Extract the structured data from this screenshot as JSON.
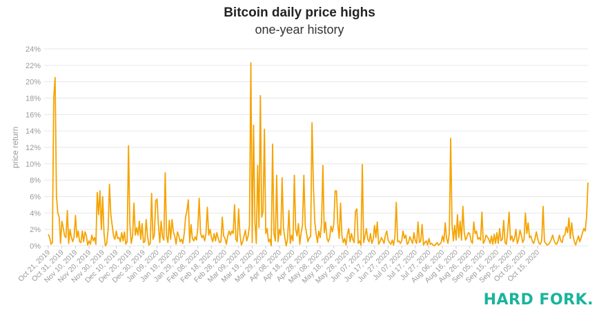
{
  "header": {
    "title": "Bitcoin daily price highs",
    "subtitle": "one-year history"
  },
  "brand": {
    "label": "HARD FORK.",
    "color": "#18b49c"
  },
  "colors": {
    "line": "#f5a300",
    "grid": "#e6e6e6",
    "axis_text": "#999999"
  },
  "chart_data": {
    "type": "line",
    "title": "Bitcoin daily price highs",
    "subtitle": "one-year history",
    "xlabel": "",
    "ylabel": "price return",
    "ylim": [
      0,
      24
    ],
    "yticks": [
      "0%",
      "2%",
      "4%",
      "6%",
      "8%",
      "10%",
      "12%",
      "14%",
      "16%",
      "18%",
      "20%",
      "22%",
      "24%"
    ],
    "grid": true,
    "x_tick_labels": [
      "Oct 21, 2019",
      "Oct 31, 2019",
      "Nov 10, 2019",
      "Nov 20, 2019",
      "Nov 30, 2019",
      "Dec 10, 2019",
      "Dec 20, 2019",
      "Dec 30, 2019",
      "Jan 09, 2020",
      "Jan 19, 2020",
      "Jan 29, 2020",
      "Feb 08, 2020",
      "Feb 18, 2020",
      "Feb 28, 2020",
      "Mar 09, 2020",
      "Mar 19, 2020",
      "Mar 29, 2020",
      "Apr 08, 2020",
      "Apr 18, 2020",
      "Apr 28, 2020",
      "May 08, 2020",
      "May 18, 2020",
      "May 28, 2020",
      "Jun 07, 2020",
      "Jun 17, 2020",
      "Jun 27, 2020",
      "Jul 07, 2020",
      "Jul 17, 2020",
      "Jul 27, 2020",
      "Aug 06, 2020",
      "Aug 16, 2020",
      "Aug 26, 2020",
      "Sep 05, 2020",
      "Sep 15, 2020",
      "Sep 25, 2020",
      "Oct 05, 2020",
      "Oct 15, 2020"
    ],
    "series": [
      {
        "values": [
          1.4,
          1.0,
          0.2,
          0.4,
          18.0,
          20.5,
          6.0,
          4.0,
          3.5,
          0.3,
          3.0,
          2.2,
          1.2,
          1.0,
          4.3,
          0.3,
          2.0,
          1.0,
          0.5,
          1.1,
          3.7,
          1.0,
          1.8,
          0.5,
          0.4,
          1.8,
          0.5,
          1.7,
          1.2,
          0.1,
          0.6,
          0.2,
          1.3,
          0.6,
          1.0,
          0.2,
          6.5,
          3.8,
          6.7,
          2.0,
          6.0,
          1.5,
          0.0,
          0.3,
          2.0,
          7.5,
          3.8,
          2.5,
          1.2,
          0.8,
          1.8,
          0.9,
          1.0,
          0.5,
          1.6,
          0.6,
          1.7,
          0.2,
          0.5,
          12.2,
          2.6,
          0.3,
          1.2,
          5.2,
          1.3,
          2.2,
          1.3,
          3.0,
          0.8,
          2.7,
          0.4,
          0.5,
          3.2,
          1.2,
          0.1,
          0.3,
          6.4,
          0.8,
          1.3,
          5.5,
          5.7,
          2.6,
          0.4,
          3.0,
          1.1,
          0.7,
          8.9,
          1.2,
          0.4,
          3.1,
          0.8,
          3.2,
          1.7,
          1.2,
          0.2,
          1.7,
          1.2,
          0.5,
          0.8,
          0.3,
          1.5,
          3.5,
          4.3,
          5.6,
          0.4,
          2.6,
          0.9,
          0.6,
          1.1,
          0.7,
          2.2,
          5.8,
          1.5,
          1.0,
          1.3,
          0.6,
          1.5,
          4.7,
          1.3,
          2.0,
          1.0,
          0.5,
          1.5,
          0.6,
          1.6,
          0.9,
          0.4,
          0.5,
          3.5,
          1.2,
          0.9,
          0.2,
          1.2,
          1.8,
          1.3,
          1.8,
          1.5,
          5.0,
          0.8,
          0.5,
          4.5,
          1.4,
          0.1,
          0.5,
          1.2,
          1.9,
          0.6,
          1.2,
          2.5,
          22.3,
          0.4,
          14.7,
          3.0,
          0.3,
          9.8,
          2.2,
          18.3,
          3.5,
          4.2,
          14.2,
          1.5,
          2.1,
          0.5,
          0.8,
          0.0,
          12.4,
          1.5,
          0.6,
          8.6,
          0.5,
          2.0,
          1.3,
          8.3,
          2.2,
          1.0,
          0.0,
          0.8,
          4.3,
          0.3,
          1.3,
          0.6,
          8.6,
          2.0,
          1.2,
          2.7,
          0.2,
          1.6,
          2.5,
          8.6,
          2.5,
          1.5,
          0.5,
          1.0,
          1.1,
          15.0,
          7.5,
          3.0,
          1.5,
          0.4,
          1.8,
          1.0,
          2.7,
          9.8,
          1.6,
          2.9,
          0.9,
          0.5,
          1.0,
          2.4,
          1.7,
          2.6,
          6.7,
          6.7,
          2.6,
          0.9,
          5.2,
          1.2,
          0.4,
          0.9,
          0.1,
          1.4,
          2.1,
          0.5,
          1.5,
          0.8,
          0.4,
          4.2,
          4.5,
          0.3,
          0.6,
          0.1,
          9.9,
          0.4,
          1.2,
          2.1,
          0.8,
          0.5,
          1.5,
          0.3,
          0.8,
          2.5,
          1.0,
          2.9,
          0.2,
          0.5,
          1.0,
          0.7,
          0.3,
          1.3,
          1.8,
          0.7,
          0.4,
          0.2,
          0.7,
          0.1,
          1.2,
          5.3,
          0.5,
          0.6,
          0.3,
          0.6,
          1.8,
          0.9,
          1.3,
          0.2,
          0.4,
          1.1,
          0.7,
          0.3,
          1.6,
          0.6,
          0.3,
          2.9,
          0.4,
          0.6,
          2.6,
          0.1,
          0.4,
          0.6,
          0.1,
          0.9,
          0.2,
          0.3,
          0.1,
          0.0,
          0.2,
          0.4,
          0.1,
          0.2,
          0.4,
          1.2,
          0.5,
          2.8,
          0.9,
          0.3,
          1.5,
          13.1,
          2.6,
          0.6,
          2.5,
          0.7,
          3.8,
          1.0,
          3.0,
          0.7,
          4.8,
          1.6,
          0.7,
          1.1,
          1.6,
          1.5,
          0.6,
          0.3,
          2.9,
          1.5,
          1.8,
          0.8,
          1.0,
          0.7,
          4.1,
          0.3,
          0.6,
          1.3,
          1.1,
          0.8,
          0.3,
          1.2,
          0.2,
          1.4,
          0.3,
          1.6,
          0.3,
          2.1,
          0.6,
          0.8,
          3.1,
          0.4,
          0.2,
          1.9,
          4.1,
          0.7,
          1.2,
          0.5,
          0.9,
          2.0,
          0.3,
          0.8,
          1.9,
          1.3,
          0.4,
          0.8,
          4.0,
          1.5,
          2.8,
          1.0,
          1.2,
          0.6,
          0.3,
          0.8,
          1.7,
          0.9,
          0.3,
          0.2,
          0.7,
          4.8,
          0.5,
          0.3,
          0.1,
          0.2,
          0.4,
          0.8,
          1.3,
          0.7,
          0.3,
          0.2,
          0.6,
          1.3,
          0.6,
          0.4,
          1.2,
          1.3,
          2.3,
          1.6,
          3.4,
          0.9,
          2.8,
          1.3,
          0.5,
          0.1,
          0.7,
          1.2,
          0.5,
          1.0,
          1.6,
          2.1,
          1.8,
          3.6,
          7.7
        ]
      }
    ]
  }
}
